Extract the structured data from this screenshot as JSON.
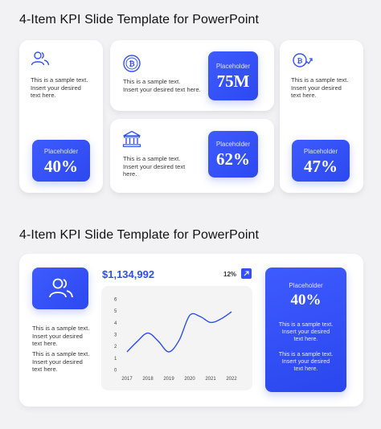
{
  "section1": {
    "title": "4-Item KPI Slide Template for PowerPoint",
    "cards": [
      {
        "icon": "users-icon",
        "text": "This is a sample text.\nInsert your desired\ntext here.",
        "placeholder": "Placeholder",
        "value": "40%"
      },
      {
        "icon": "bitcoin-icon",
        "text": "This is a sample text.\nInsert your desired text here.",
        "placeholder": "Placeholder",
        "value": "75M"
      },
      {
        "icon": "bank-icon",
        "text": "This is a sample text.\nInsert your desired text\nhere.",
        "placeholder": "Placeholder",
        "value": "62%"
      },
      {
        "icon": "bitcoin-growth-icon",
        "text": "This is a sample text.\nInsert your desired\ntext here.",
        "placeholder": "Placeholder",
        "value": "47%"
      }
    ]
  },
  "section2": {
    "title": "4-Item KPI Slide Template for PowerPoint",
    "left_text_1": "This is a sample text.\nInsert your desired\ntext here.",
    "left_text_2": "This is a sample text.\nInsert your desired\ntext here.",
    "amount": "$1,134,992",
    "change": "12%",
    "placeholder": "Placeholder",
    "value": "40%",
    "right_text_1": "This is a sample text.\nInsert your desired\ntext here.",
    "right_text_2": "This is a sample text.\nInsert your desired\ntext here."
  },
  "chart_data": {
    "type": "line",
    "x": [
      2017,
      2017.5,
      2018,
      2018.5,
      2019,
      2019.5,
      2020,
      2020.5,
      2021,
      2021.5,
      2022
    ],
    "series": [
      {
        "values": [
          1.5,
          2.4,
          3.1,
          2.4,
          1.5,
          2.5,
          4.6,
          4.5,
          4.0,
          4.3,
          4.9
        ]
      }
    ],
    "xticks": [
      "2017",
      "2018",
      "2019",
      "2020",
      "2021",
      "2022"
    ],
    "yticks": [
      "0",
      "1",
      "2",
      "3",
      "4",
      "5",
      "6"
    ],
    "ylim": [
      0,
      6
    ],
    "xlim": [
      2017,
      2022
    ],
    "color": "#2d4ef0",
    "grid": false
  }
}
